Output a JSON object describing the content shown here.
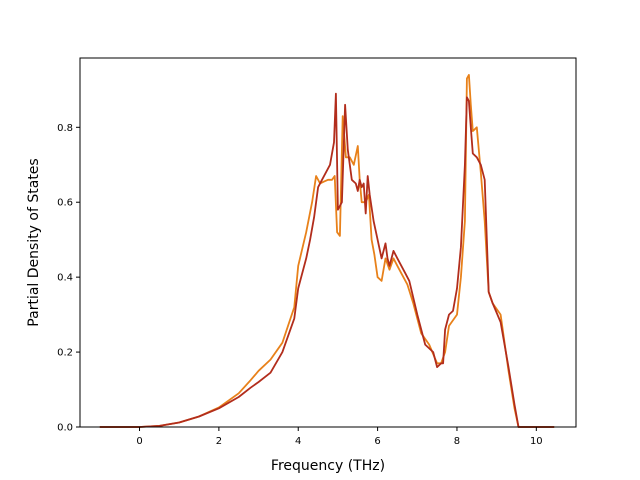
{
  "chart_data": {
    "type": "line",
    "title": "",
    "xlabel": "Frequency (THz)",
    "ylabel": "Partial Density of States",
    "xlim": [
      -1.5,
      11.0
    ],
    "ylim": [
      0.0,
      0.985
    ],
    "xticks": [
      0,
      2,
      4,
      6,
      8,
      10
    ],
    "yticks": [
      0.0,
      0.2,
      0.4,
      0.6,
      0.8
    ],
    "xtick_labels": [
      "0",
      "2",
      "4",
      "6",
      "8",
      "10"
    ],
    "ytick_labels": [
      "0.0",
      "0.2",
      "0.4",
      "0.6",
      "0.8"
    ],
    "grid": false,
    "legend": false,
    "series": [
      {
        "color": "#e8811a",
        "x": [
          -1.0,
          0.0,
          0.5,
          1.0,
          1.5,
          2.0,
          2.5,
          2.8,
          3.0,
          3.3,
          3.6,
          3.9,
          4.0,
          4.2,
          4.35,
          4.45,
          4.55,
          4.65,
          4.75,
          4.85,
          4.92,
          4.98,
          5.05,
          5.12,
          5.2,
          5.3,
          5.4,
          5.5,
          5.55,
          5.6,
          5.7,
          5.78,
          5.85,
          5.92,
          6.0,
          6.1,
          6.2,
          6.3,
          6.4,
          6.5,
          6.6,
          6.75,
          6.9,
          7.1,
          7.3,
          7.5,
          7.6,
          7.7,
          7.8,
          8.0,
          8.1,
          8.2,
          8.25,
          8.3,
          8.35,
          8.4,
          8.5,
          8.6,
          8.7,
          8.8,
          8.9,
          9.1,
          9.3,
          9.45,
          9.55,
          10.0,
          10.45
        ],
        "y": [
          0.0,
          0.0,
          0.003,
          0.012,
          0.028,
          0.052,
          0.09,
          0.125,
          0.15,
          0.18,
          0.225,
          0.32,
          0.43,
          0.52,
          0.6,
          0.67,
          0.65,
          0.655,
          0.66,
          0.66,
          0.67,
          0.52,
          0.51,
          0.83,
          0.72,
          0.72,
          0.7,
          0.75,
          0.66,
          0.6,
          0.6,
          0.62,
          0.5,
          0.46,
          0.4,
          0.39,
          0.45,
          0.42,
          0.45,
          0.43,
          0.41,
          0.38,
          0.33,
          0.25,
          0.22,
          0.17,
          0.17,
          0.2,
          0.27,
          0.3,
          0.4,
          0.55,
          0.93,
          0.94,
          0.86,
          0.79,
          0.8,
          0.68,
          0.55,
          0.36,
          0.33,
          0.3,
          0.15,
          0.05,
          0.0,
          0.0,
          0.0
        ]
      },
      {
        "color": "#b22d1c",
        "x": [
          -1.0,
          0.0,
          0.5,
          1.0,
          1.5,
          2.0,
          2.5,
          2.8,
          3.0,
          3.3,
          3.6,
          3.9,
          4.0,
          4.2,
          4.3,
          4.4,
          4.5,
          4.6,
          4.7,
          4.8,
          4.9,
          4.95,
          5.0,
          5.1,
          5.18,
          5.25,
          5.35,
          5.45,
          5.5,
          5.55,
          5.6,
          5.65,
          5.7,
          5.75,
          5.8,
          5.9,
          6.0,
          6.1,
          6.2,
          6.25,
          6.3,
          6.4,
          6.5,
          6.6,
          6.7,
          6.8,
          7.0,
          7.2,
          7.4,
          7.5,
          7.6,
          7.65,
          7.7,
          7.8,
          7.9,
          8.0,
          8.1,
          8.2,
          8.25,
          8.3,
          8.35,
          8.4,
          8.5,
          8.6,
          8.7,
          8.8,
          8.9,
          9.1,
          9.3,
          9.45,
          9.55,
          10.0,
          10.45
        ],
        "y": [
          0.0,
          0.0,
          0.003,
          0.012,
          0.028,
          0.05,
          0.08,
          0.105,
          0.12,
          0.145,
          0.2,
          0.29,
          0.37,
          0.45,
          0.5,
          0.56,
          0.64,
          0.66,
          0.68,
          0.7,
          0.76,
          0.89,
          0.58,
          0.6,
          0.86,
          0.74,
          0.66,
          0.65,
          0.63,
          0.66,
          0.64,
          0.65,
          0.57,
          0.67,
          0.62,
          0.55,
          0.5,
          0.45,
          0.49,
          0.45,
          0.43,
          0.47,
          0.45,
          0.43,
          0.41,
          0.39,
          0.3,
          0.22,
          0.2,
          0.16,
          0.17,
          0.17,
          0.26,
          0.3,
          0.31,
          0.37,
          0.48,
          0.7,
          0.88,
          0.87,
          0.8,
          0.73,
          0.72,
          0.7,
          0.66,
          0.36,
          0.33,
          0.28,
          0.16,
          0.06,
          0.0,
          0.0,
          0.0
        ]
      }
    ]
  }
}
